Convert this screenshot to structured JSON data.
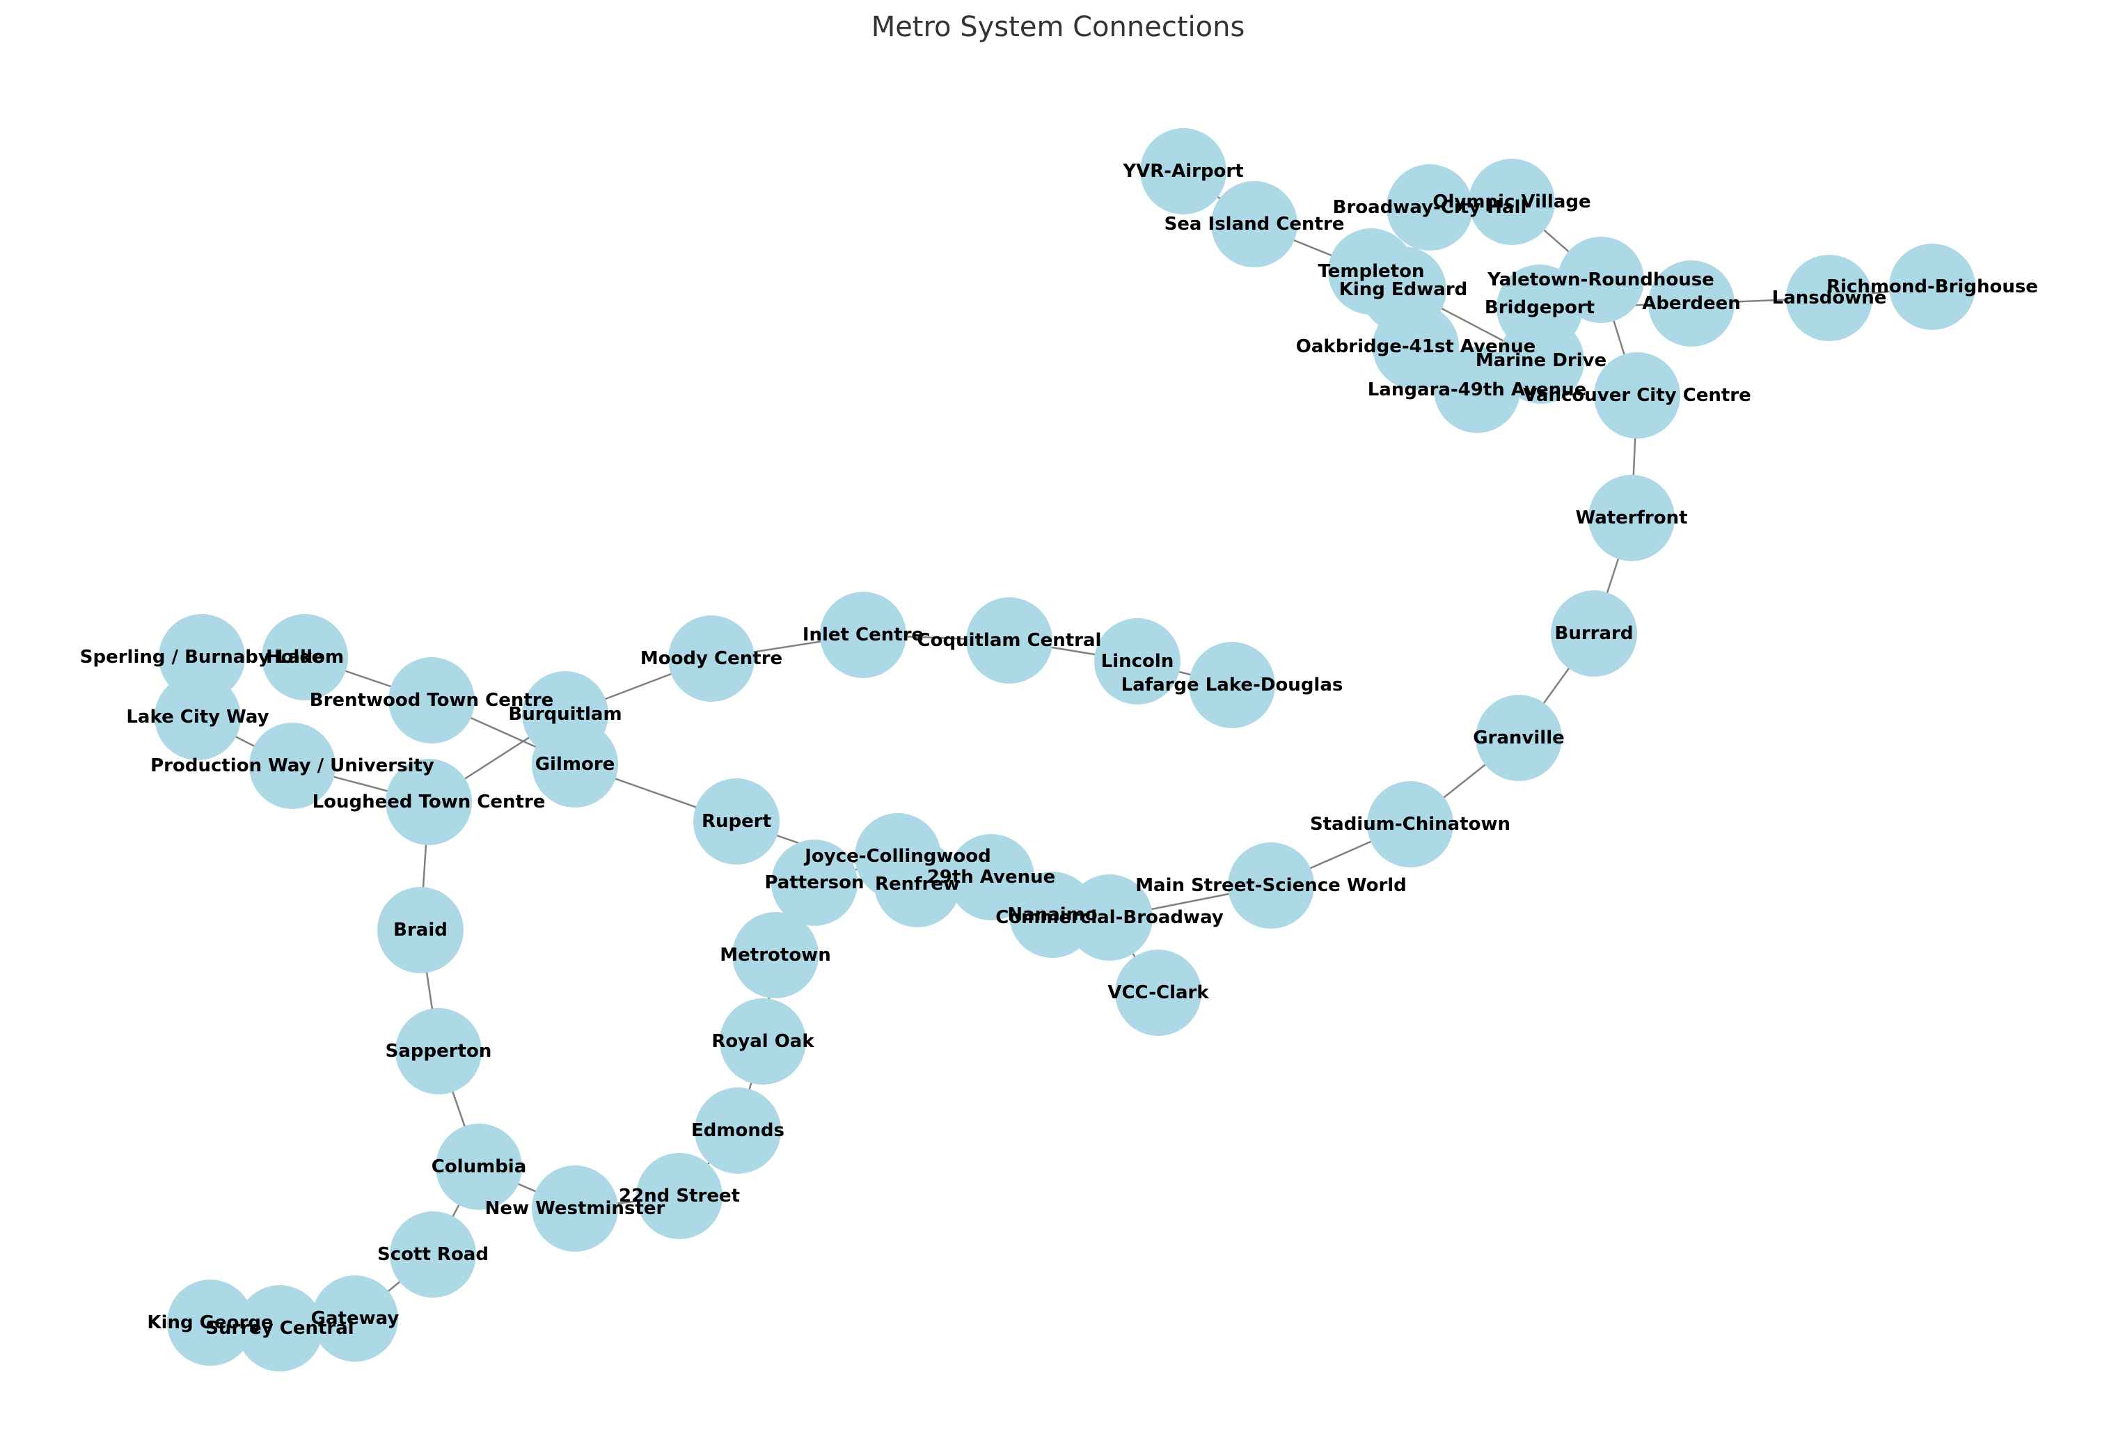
{
  "title": "Metro System Connections",
  "colors": {
    "node_fill": "#add8e6",
    "edge": "#808080",
    "label": "#000000",
    "title": "#333333"
  },
  "nodes": [
    {
      "id": "YVR-Airport"
    },
    {
      "id": "Sea Island Centre"
    },
    {
      "id": "Templeton"
    },
    {
      "id": "Broadway-City Hall"
    },
    {
      "id": "Olympic Village"
    },
    {
      "id": "Yaletown-Roundhouse"
    },
    {
      "id": "King Edward"
    },
    {
      "id": "Bridgeport"
    },
    {
      "id": "Aberdeen"
    },
    {
      "id": "Lansdowne"
    },
    {
      "id": "Richmond-Brighouse"
    },
    {
      "id": "Oakbridge-41st Avenue"
    },
    {
      "id": "Marine Drive"
    },
    {
      "id": "Langara-49th Avenue"
    },
    {
      "id": "Vancouver City Centre"
    },
    {
      "id": "Waterfront"
    },
    {
      "id": "Burrard"
    },
    {
      "id": "Granville"
    },
    {
      "id": "Stadium-Chinatown"
    },
    {
      "id": "Main Street-Science World"
    },
    {
      "id": "Commercial-Broadway"
    },
    {
      "id": "Nanaimo"
    },
    {
      "id": "VCC-Clark"
    },
    {
      "id": "29th Avenue"
    },
    {
      "id": "Joyce-Collingwood"
    },
    {
      "id": "Renfrew"
    },
    {
      "id": "Patterson"
    },
    {
      "id": "Rupert"
    },
    {
      "id": "Metrotown"
    },
    {
      "id": "Royal Oak"
    },
    {
      "id": "Edmonds"
    },
    {
      "id": "22nd Street"
    },
    {
      "id": "New Westminster"
    },
    {
      "id": "Columbia"
    },
    {
      "id": "Sapperton"
    },
    {
      "id": "Braid"
    },
    {
      "id": "Scott Road"
    },
    {
      "id": "Gateway"
    },
    {
      "id": "Surrey Central"
    },
    {
      "id": "King George"
    },
    {
      "id": "Lougheed Town Centre"
    },
    {
      "id": "Production Way / University"
    },
    {
      "id": "Lake City Way"
    },
    {
      "id": "Sperling / Burnaby Lake"
    },
    {
      "id": "Holdom"
    },
    {
      "id": "Brentwood Town Centre"
    },
    {
      "id": "Gilmore"
    },
    {
      "id": "Burquitlam"
    },
    {
      "id": "Moody Centre"
    },
    {
      "id": "Inlet Centre"
    },
    {
      "id": "Coquitlam Central"
    },
    {
      "id": "Lincoln"
    },
    {
      "id": "Lafarge Lake-Douglas"
    }
  ],
  "edges": [
    [
      "YVR-Airport",
      "Sea Island Centre"
    ],
    [
      "Sea Island Centre",
      "Templeton"
    ],
    [
      "Templeton",
      "Marine Drive"
    ],
    [
      "Broadway-City Hall",
      "King Edward"
    ],
    [
      "Olympic Village",
      "Yaletown-Roundhouse"
    ],
    [
      "Yaletown-Roundhouse",
      "Vancouver City Centre"
    ],
    [
      "Bridgeport",
      "Aberdeen"
    ],
    [
      "Aberdeen",
      "Lansdowne"
    ],
    [
      "Lansdowne",
      "Richmond-Brighouse"
    ],
    [
      "Vancouver City Centre",
      "Waterfront"
    ],
    [
      "Waterfront",
      "Burrard"
    ],
    [
      "Burrard",
      "Granville"
    ],
    [
      "Granville",
      "Stadium-Chinatown"
    ],
    [
      "Stadium-Chinatown",
      "Main Street-Science World"
    ],
    [
      "Main Street-Science World",
      "Commercial-Broadway"
    ],
    [
      "Commercial-Broadway",
      "VCC-Clark"
    ],
    [
      "Commercial-Broadway",
      "Nanaimo"
    ],
    [
      "Nanaimo",
      "29th Avenue"
    ],
    [
      "29th Avenue",
      "Joyce-Collingwood"
    ],
    [
      "Renfrew",
      "Joyce-Collingwood"
    ],
    [
      "Rupert",
      "Renfrew"
    ],
    [
      "Gilmore",
      "Rupert"
    ],
    [
      "Joyce-Collingwood",
      "Patterson"
    ],
    [
      "Patterson",
      "Metrotown"
    ],
    [
      "Metrotown",
      "Royal Oak"
    ],
    [
      "Royal Oak",
      "Edmonds"
    ],
    [
      "Edmonds",
      "22nd Street"
    ],
    [
      "22nd Street",
      "New Westminster"
    ],
    [
      "New Westminster",
      "Columbia"
    ],
    [
      "Columbia",
      "Sapperton"
    ],
    [
      "Sapperton",
      "Braid"
    ],
    [
      "Braid",
      "Lougheed Town Centre"
    ],
    [
      "Columbia",
      "Scott Road"
    ],
    [
      "Scott Road",
      "Gateway"
    ],
    [
      "Gateway",
      "Surrey Central"
    ],
    [
      "Surrey Central",
      "King George"
    ],
    [
      "Lougheed Town Centre",
      "Production Way / University"
    ],
    [
      "Production Way / University",
      "Lake City Way"
    ],
    [
      "Lake City Way",
      "Sperling / Burnaby Lake"
    ],
    [
      "Holdom",
      "Brentwood Town Centre"
    ],
    [
      "Brentwood Town Centre",
      "Gilmore"
    ],
    [
      "Lougheed Town Centre",
      "Burquitlam"
    ],
    [
      "Burquitlam",
      "Moody Centre"
    ],
    [
      "Moody Centre",
      "Inlet Centre"
    ],
    [
      "Inlet Centre",
      "Coquitlam Central"
    ],
    [
      "Coquitlam Central",
      "Lincoln"
    ],
    [
      "Lincoln",
      "Lafarge Lake-Douglas"
    ],
    [
      "Oakbridge-41st Avenue",
      "Langara-49th Avenue"
    ]
  ]
}
